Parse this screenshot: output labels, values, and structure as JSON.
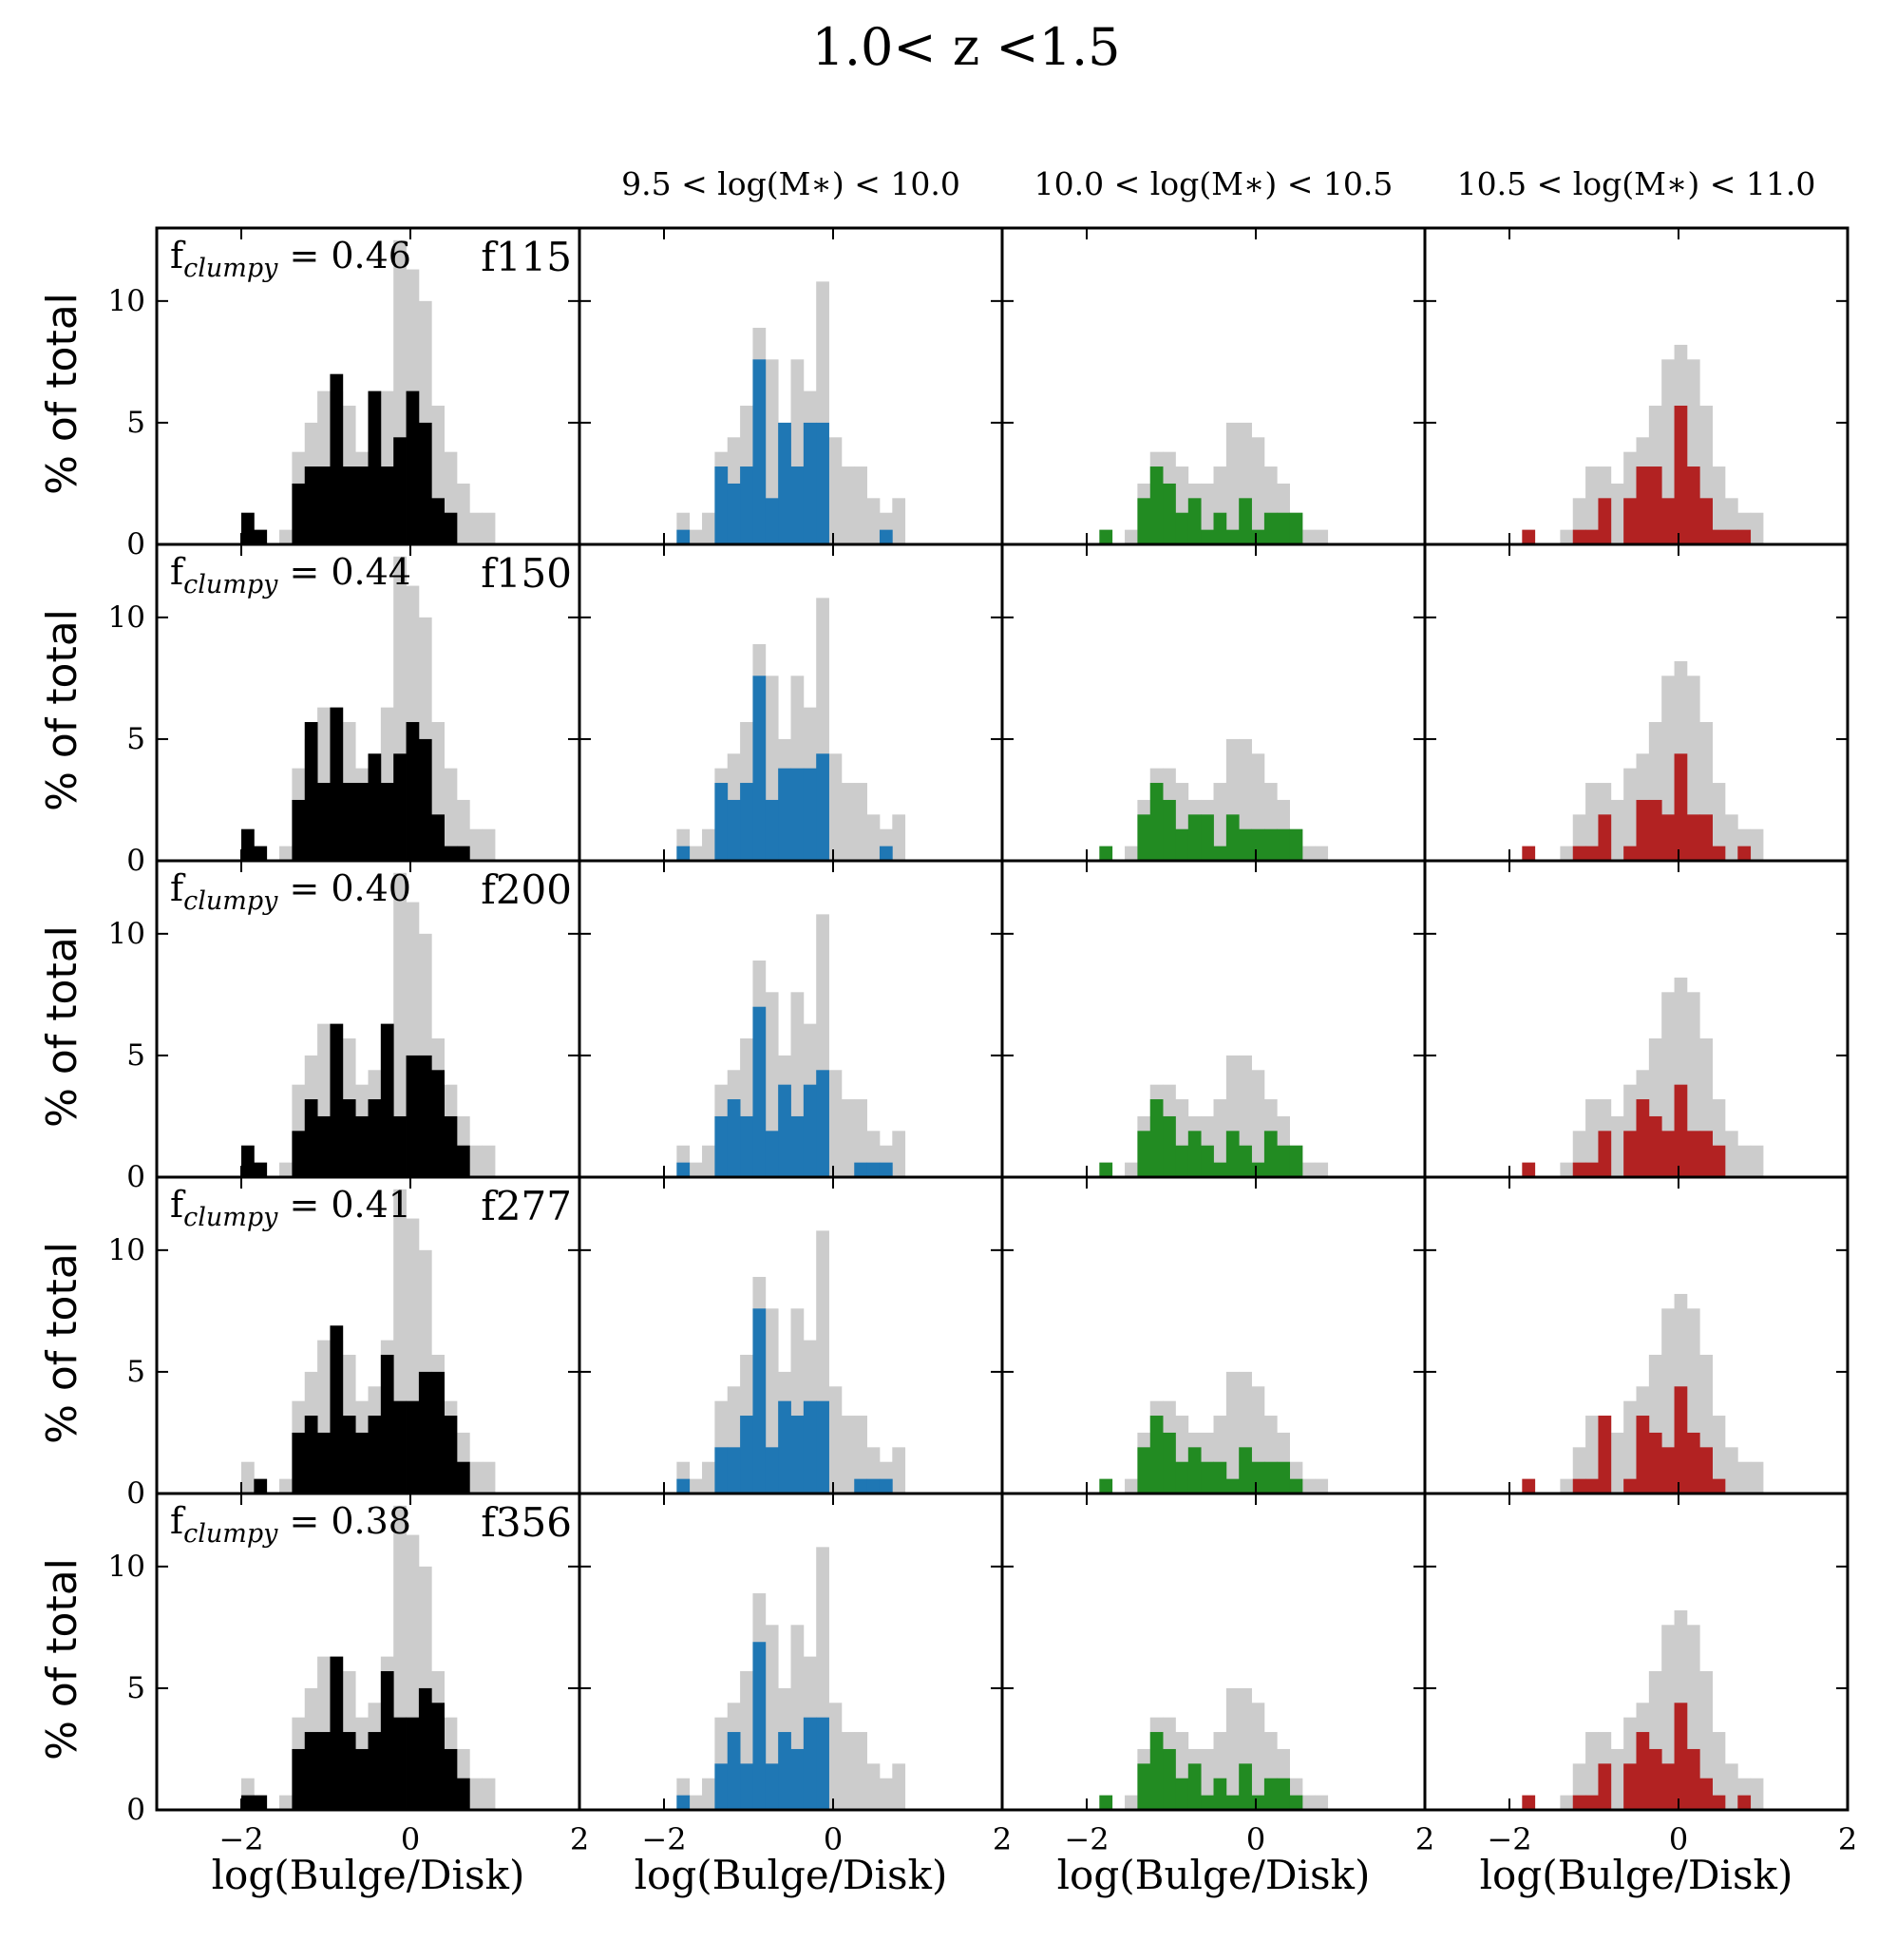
{
  "chart_data": {
    "type": "bar",
    "title": "1.0< z <1.5",
    "xlabel": "log(Bulge/Disk)",
    "ylabel": "% of total",
    "xlim": [
      -3,
      2
    ],
    "ylim": [
      0,
      13
    ],
    "x_ticks": [
      -2,
      0,
      2
    ],
    "x_tick_labels": [
      "−2",
      "0",
      "2"
    ],
    "y_ticks": [
      0,
      5,
      10
    ],
    "y_tick_labels": [
      "0",
      "5",
      "10"
    ],
    "bin_left_edges": [
      -2.15,
      -2.0,
      -1.85,
      -1.7,
      -1.55,
      -1.4,
      -1.25,
      -1.1,
      -0.95,
      -0.8,
      -0.65,
      -0.5,
      -0.35,
      -0.2,
      -0.05,
      0.1,
      0.25,
      0.4,
      0.55,
      0.7,
      0.85,
      1.0
    ],
    "bin_width": 0.15,
    "columns": [
      {
        "label": "",
        "color": "#000000"
      },
      {
        "label": "9.5 < log(M∗) < 10.0",
        "color": "#1f77b4"
      },
      {
        "label": "10.0 < log(M∗) < 10.5",
        "color": "#228b22"
      },
      {
        "label": "10.5 < log(M∗) < 11.0",
        "color": "#b22222"
      }
    ],
    "background_color": "#cccccc",
    "background_values": [
      [
        0,
        1.3,
        0.6,
        0,
        0.6,
        3.8,
        5,
        6.3,
        6.3,
        5.7,
        3.8,
        4.4,
        6.3,
        12.5,
        11.3,
        10,
        5.7,
        3.8,
        2.5,
        1.3,
        1.3,
        0
      ],
      [
        0,
        0,
        1.3,
        0.6,
        1.3,
        3.8,
        4.4,
        5.7,
        8.9,
        7.6,
        5,
        7.6,
        6.3,
        10.8,
        4.4,
        3.2,
        3.2,
        1.9,
        1.3,
        1.9,
        0,
        0
      ],
      [
        0,
        0,
        0.6,
        0,
        0.6,
        2.5,
        3.8,
        3.8,
        3.2,
        2.5,
        2.5,
        3.2,
        5,
        5,
        4.4,
        3.2,
        2.5,
        1.3,
        0.6,
        0.6,
        0,
        0
      ],
      [
        0,
        0,
        0.6,
        0,
        0,
        0.6,
        1.9,
        3.2,
        3.2,
        2.5,
        3.8,
        4.4,
        5.7,
        7.6,
        8.2,
        7.6,
        5.7,
        3.2,
        1.9,
        1.3,
        1.3,
        0
      ]
    ],
    "rows": [
      {
        "filter": "f115",
        "f_clumpy": "0.46",
        "values": [
          [
            0,
            1.3,
            0.6,
            0,
            0,
            2.5,
            3.2,
            3.2,
            7,
            3.2,
            3.2,
            6.3,
            3.2,
            4.4,
            6.3,
            5,
            1.9,
            1.3,
            0,
            0,
            0,
            0
          ],
          [
            0,
            0,
            0.6,
            0,
            0,
            3.2,
            2.5,
            3.2,
            7.6,
            1.9,
            5,
            3.2,
            5,
            5,
            0,
            0,
            0,
            0,
            0.6,
            0,
            0,
            0
          ],
          [
            0,
            0,
            0.6,
            0,
            0,
            1.9,
            3.2,
            2.5,
            1.3,
            1.9,
            0.6,
            1.3,
            0.6,
            1.9,
            0.6,
            1.3,
            1.3,
            1.3,
            0,
            0,
            0,
            0
          ],
          [
            0,
            0,
            0.6,
            0,
            0,
            0,
            0.6,
            0.6,
            1.9,
            0,
            1.9,
            3.2,
            3.2,
            1.9,
            5.7,
            3.2,
            1.9,
            0.6,
            0.6,
            0.6,
            0,
            0
          ]
        ]
      },
      {
        "filter": "f150",
        "f_clumpy": "0.44",
        "values": [
          [
            0,
            1.3,
            0.6,
            0,
            0,
            2.5,
            5.7,
            3.2,
            6.3,
            3.2,
            3.2,
            4.4,
            3.2,
            4.4,
            5.7,
            5,
            1.9,
            0.6,
            0.6,
            0,
            0,
            0
          ],
          [
            0,
            0,
            0.6,
            0,
            0,
            3.2,
            2.5,
            3.2,
            7.6,
            2.5,
            3.8,
            3.8,
            3.8,
            4.4,
            0,
            0,
            0,
            0,
            0.6,
            0,
            0,
            0
          ],
          [
            0,
            0,
            0.6,
            0,
            0,
            1.9,
            3.2,
            2.5,
            1.3,
            1.9,
            1.9,
            0.6,
            1.9,
            1.3,
            1.3,
            1.3,
            1.3,
            1.3,
            0,
            0,
            0,
            0
          ],
          [
            0,
            0,
            0.6,
            0,
            0,
            0,
            0.6,
            0.6,
            1.9,
            0,
            0.6,
            2.5,
            2.5,
            1.9,
            4.4,
            1.9,
            1.9,
            0.6,
            0,
            0.6,
            0,
            0
          ]
        ]
      },
      {
        "filter": "f200",
        "f_clumpy": "0.40",
        "values": [
          [
            0,
            1.3,
            0.6,
            0,
            0,
            1.9,
            3.2,
            2.5,
            6.3,
            3.2,
            2.5,
            3.2,
            6.3,
            2.5,
            5,
            5,
            4.4,
            2.5,
            1.3,
            0,
            0,
            0
          ],
          [
            0,
            0,
            0.6,
            0,
            0,
            2.5,
            3.2,
            2.5,
            7,
            1.9,
            3.8,
            2.5,
            3.8,
            4.4,
            0,
            0,
            0.6,
            0.6,
            0.6,
            0,
            0,
            0
          ],
          [
            0,
            0,
            0.6,
            0,
            0,
            1.9,
            3.2,
            2.5,
            1.3,
            1.9,
            1.3,
            0.6,
            1.9,
            1.3,
            0.6,
            1.9,
            1.3,
            1.3,
            0,
            0,
            0,
            0
          ],
          [
            0,
            0,
            0.6,
            0,
            0,
            0,
            0.6,
            0.6,
            1.9,
            0,
            1.9,
            3.2,
            2.5,
            1.9,
            3.8,
            1.9,
            1.9,
            1.3,
            0,
            0,
            0,
            0
          ]
        ]
      },
      {
        "filter": "f277",
        "f_clumpy": "0.41",
        "values": [
          [
            0,
            0,
            0.6,
            0,
            0,
            2.5,
            3.2,
            2.5,
            6.9,
            3.2,
            2.5,
            3.2,
            5.7,
            3.8,
            3.8,
            5,
            5,
            3.2,
            1.3,
            0,
            0,
            0
          ],
          [
            0,
            0,
            0.6,
            0,
            0,
            1.9,
            1.9,
            3.2,
            7.6,
            1.9,
            3.8,
            3.2,
            3.8,
            3.8,
            0,
            0,
            0.6,
            0.6,
            0.6,
            0,
            0,
            0
          ],
          [
            0,
            0,
            0.6,
            0,
            0,
            1.9,
            3.2,
            2.5,
            1.3,
            1.9,
            1.3,
            1.3,
            0.6,
            1.9,
            1.3,
            1.3,
            1.3,
            0.6,
            0,
            0,
            0,
            0
          ],
          [
            0,
            0,
            0.6,
            0,
            0,
            0,
            0.6,
            0.6,
            3.2,
            0,
            0.6,
            3.2,
            2.5,
            1.9,
            4.4,
            2.5,
            1.9,
            0.6,
            0,
            0,
            0,
            0
          ]
        ]
      },
      {
        "filter": "f356",
        "f_clumpy": "0.38",
        "values": [
          [
            0,
            0.6,
            0.6,
            0,
            0,
            2.5,
            3.2,
            3.2,
            6.3,
            3.2,
            2.5,
            3.2,
            5.7,
            3.8,
            3.8,
            5,
            4.4,
            2.5,
            1.3,
            0,
            0,
            0
          ],
          [
            0,
            0,
            0.6,
            0,
            0,
            1.9,
            3.2,
            1.9,
            6.9,
            1.9,
            3.2,
            2.5,
            3.8,
            3.8,
            0,
            0,
            0,
            0,
            0,
            0,
            0,
            0
          ],
          [
            0,
            0,
            0.6,
            0,
            0,
            1.9,
            3.2,
            2.5,
            1.3,
            1.9,
            0.6,
            1.3,
            0.6,
            1.9,
            0.6,
            1.3,
            1.3,
            0.6,
            0,
            0,
            0,
            0
          ],
          [
            0,
            0,
            0.6,
            0,
            0,
            0,
            0.6,
            0.6,
            1.9,
            0,
            1.9,
            3.2,
            2.5,
            1.9,
            4.4,
            2.5,
            1.3,
            0.6,
            0,
            0.6,
            0,
            0
          ]
        ]
      }
    ]
  }
}
